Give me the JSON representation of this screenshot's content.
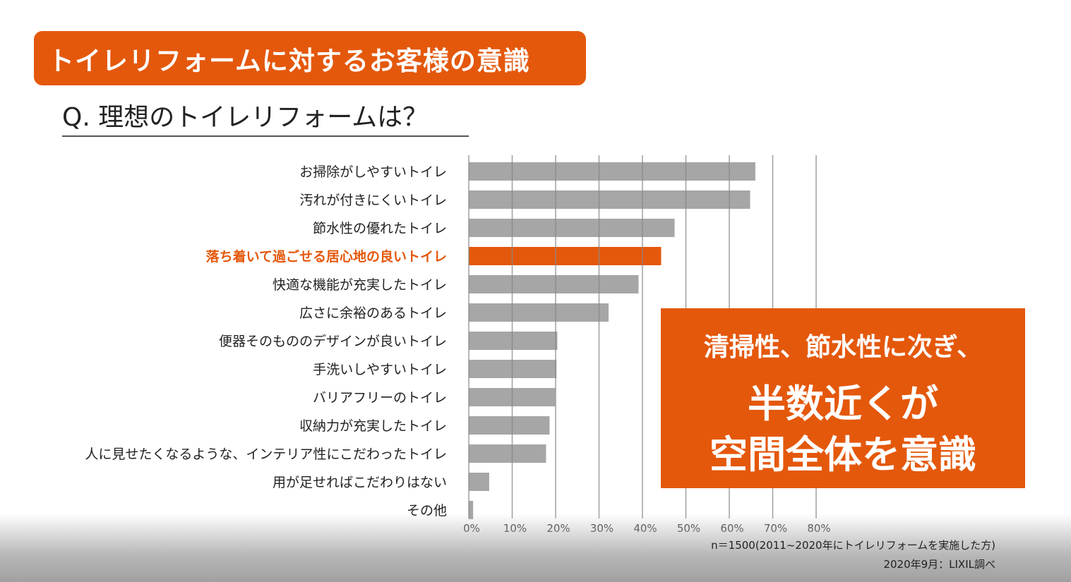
{
  "title": "トイレリフォームに対するお客様の意識",
  "question": "Q. 理想のトイレリフォームは？",
  "colors": {
    "accent": "#e4580c",
    "bar": "#a6a6a6",
    "grid": "#888888"
  },
  "callout": {
    "line1": "清掃性、節水性に次ぎ、",
    "line2": "半数近くが",
    "line3": "空間全体を意識"
  },
  "notes": {
    "sample": "n＝1500(2011~2020年にトイレリフォームを実施した方)",
    "source": "2020年9月：LIXIL調べ"
  },
  "chart_data": {
    "type": "bar",
    "orientation": "horizontal",
    "categories": [
      "お掃除がしやすいトイレ",
      "汚れが付きにくいトイレ",
      "節水性の優れたトイレ",
      "落ち着いて過ごせる居心地の良いトイレ",
      "快適な機能が充実したトイレ",
      "広さに余裕のあるトイレ",
      "便器そのもののデザインが良いトイレ",
      "手洗いしやすいトイレ",
      "バリアフリーのトイレ",
      "収納力が充実したトイレ",
      "人に見せたくなるような、インテリア性にこだわったトイレ",
      "用が足せればこだわりはない",
      "その他"
    ],
    "values": [
      66.0,
      64.8,
      47.4,
      44.3,
      39.1,
      32.2,
      20.4,
      20.2,
      19.9,
      18.6,
      17.8,
      4.7,
      1.0
    ],
    "highlight_index": 3,
    "xlim": [
      0,
      80
    ],
    "xticks": [
      "0%",
      "10%",
      "20%",
      "30%",
      "40%",
      "50%",
      "60%",
      "70%",
      "80%"
    ],
    "grid": true
  }
}
